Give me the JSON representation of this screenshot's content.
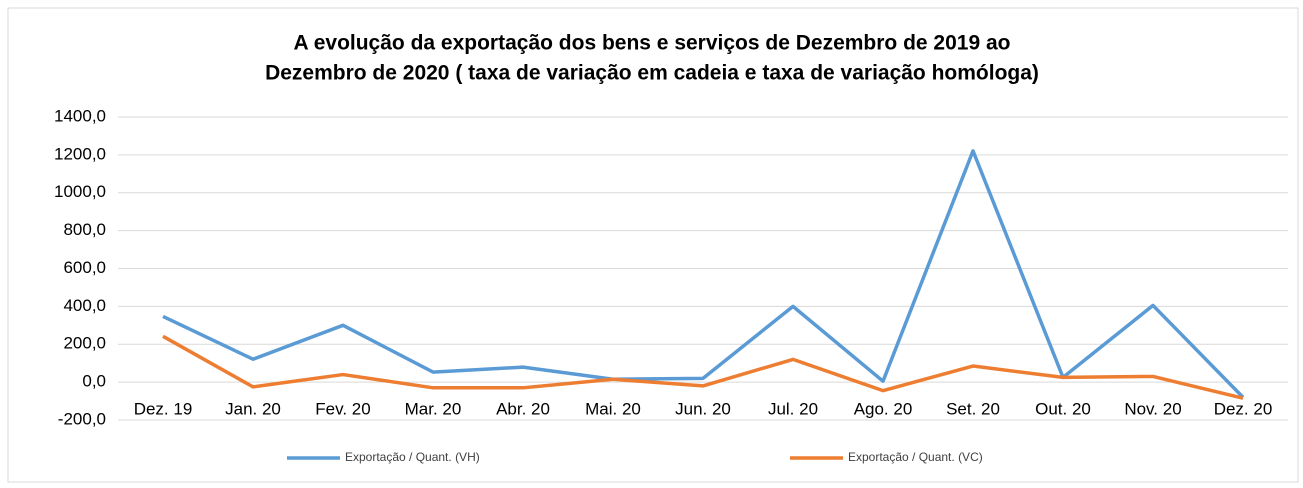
{
  "chart_data": {
    "type": "line",
    "title": [
      "A evolução da exportação dos bens e serviços de Dezembro de 2019 ao",
      "Dezembro de 2020 ( taxa de variação em cadeia e taxa de variação homóloga)"
    ],
    "categories": [
      "Dez. 19",
      "Jan. 20",
      "Fev. 20",
      "Mar. 20",
      "Abr. 20",
      "Mai. 20",
      "Jun. 20",
      "Jul. 20",
      "Ago. 20",
      "Set. 20",
      "Out. 20",
      "Nov. 20",
      "Dez. 20"
    ],
    "series": [
      {
        "name": "Exportação / Quant. (VH)",
        "color": "#5b9bd5",
        "values": [
          347,
          121,
          300,
          53,
          79,
          15,
          20,
          400,
          5,
          1221,
          25,
          405,
          -80
        ]
      },
      {
        "name": "Exportação / Quant. (VC)",
        "color": "#ed7d31",
        "values": [
          242,
          -25,
          40,
          -30,
          -30,
          15,
          -20,
          120,
          -45,
          85,
          25,
          30,
          -85
        ]
      }
    ],
    "ylim": [
      -200,
      1400
    ],
    "yticks": [
      {
        "value": -200,
        "label": "-200,0"
      },
      {
        "value": 0,
        "label": "0,0"
      },
      {
        "value": 200,
        "label": "200,0"
      },
      {
        "value": 400,
        "label": "400,0"
      },
      {
        "value": 600,
        "label": "600,0"
      },
      {
        "value": 800,
        "label": "800,0"
      },
      {
        "value": 1000,
        "label": "1000,0"
      },
      {
        "value": 1200,
        "label": "1200,0"
      },
      {
        "value": 1400,
        "label": "1400,0"
      }
    ],
    "grid": true,
    "legend": "bottom"
  }
}
